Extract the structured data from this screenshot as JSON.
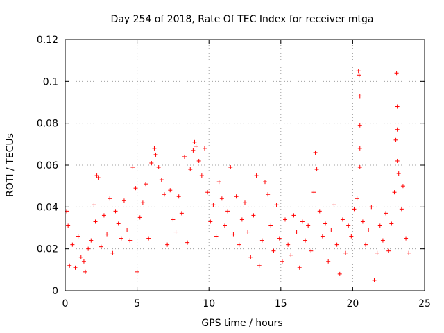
{
  "chart_data": {
    "type": "scatter",
    "title": "Day 254 of 2018, Rate Of TEC Index for receiver mtga",
    "xlabel": "GPS time / hours",
    "ylabel": "ROTI / TECUs",
    "xlim": [
      0,
      25
    ],
    "ylim": [
      0,
      0.12
    ],
    "x_ticks": [
      0,
      5,
      10,
      15,
      20,
      25
    ],
    "x_tick_labels": [
      "0",
      "5",
      "10",
      "15",
      "20",
      "25"
    ],
    "y_ticks": [
      0,
      0.02,
      0.04,
      0.06,
      0.08,
      0.1,
      0.12
    ],
    "y_tick_labels": [
      "0",
      "0.02",
      "0.04",
      "0.06",
      "0.08",
      "0.1",
      "0.12"
    ],
    "grid": true,
    "marker": "+",
    "color": "#ff0000",
    "series": [
      {
        "name": "ROTI",
        "points": [
          [
            0.1,
            0.038
          ],
          [
            0.2,
            0.031
          ],
          [
            0.3,
            0.012
          ],
          [
            0.5,
            0.022
          ],
          [
            0.7,
            0.011
          ],
          [
            0.9,
            0.026
          ],
          [
            1.1,
            0.016
          ],
          [
            1.3,
            0.014
          ],
          [
            1.4,
            0.009
          ],
          [
            1.6,
            0.02
          ],
          [
            1.8,
            0.024
          ],
          [
            2.0,
            0.041
          ],
          [
            2.1,
            0.033
          ],
          [
            2.2,
            0.055
          ],
          [
            2.3,
            0.054
          ],
          [
            2.5,
            0.021
          ],
          [
            2.7,
            0.036
          ],
          [
            2.9,
            0.027
          ],
          [
            3.1,
            0.044
          ],
          [
            3.3,
            0.018
          ],
          [
            3.5,
            0.038
          ],
          [
            3.7,
            0.032
          ],
          [
            3.9,
            0.025
          ],
          [
            4.1,
            0.043
          ],
          [
            4.3,
            0.029
          ],
          [
            4.5,
            0.024
          ],
          [
            4.7,
            0.059
          ],
          [
            4.9,
            0.049
          ],
          [
            5.0,
            0.009
          ],
          [
            5.2,
            0.035
          ],
          [
            5.4,
            0.042
          ],
          [
            5.6,
            0.051
          ],
          [
            5.8,
            0.025
          ],
          [
            6.0,
            0.061
          ],
          [
            6.2,
            0.068
          ],
          [
            6.3,
            0.065
          ],
          [
            6.5,
            0.059
          ],
          [
            6.7,
            0.053
          ],
          [
            6.9,
            0.046
          ],
          [
            7.1,
            0.022
          ],
          [
            7.3,
            0.048
          ],
          [
            7.5,
            0.034
          ],
          [
            7.7,
            0.028
          ],
          [
            7.9,
            0.045
          ],
          [
            8.1,
            0.037
          ],
          [
            8.3,
            0.064
          ],
          [
            8.5,
            0.023
          ],
          [
            8.7,
            0.058
          ],
          [
            8.9,
            0.067
          ],
          [
            9.0,
            0.071
          ],
          [
            9.1,
            0.069
          ],
          [
            9.3,
            0.062
          ],
          [
            9.5,
            0.055
          ],
          [
            9.7,
            0.068
          ],
          [
            9.9,
            0.047
          ],
          [
            10.1,
            0.033
          ],
          [
            10.3,
            0.041
          ],
          [
            10.5,
            0.026
          ],
          [
            10.7,
            0.052
          ],
          [
            10.9,
            0.044
          ],
          [
            11.1,
            0.031
          ],
          [
            11.3,
            0.038
          ],
          [
            11.5,
            0.059
          ],
          [
            11.7,
            0.027
          ],
          [
            11.9,
            0.045
          ],
          [
            12.1,
            0.022
          ],
          [
            12.3,
            0.034
          ],
          [
            12.5,
            0.042
          ],
          [
            12.7,
            0.028
          ],
          [
            12.9,
            0.016
          ],
          [
            13.1,
            0.036
          ],
          [
            13.3,
            0.055
          ],
          [
            13.5,
            0.012
          ],
          [
            13.7,
            0.024
          ],
          [
            13.9,
            0.052
          ],
          [
            14.1,
            0.046
          ],
          [
            14.3,
            0.031
          ],
          [
            14.5,
            0.019
          ],
          [
            14.7,
            0.041
          ],
          [
            14.9,
            0.025
          ],
          [
            15.1,
            0.014
          ],
          [
            15.3,
            0.034
          ],
          [
            15.5,
            0.022
          ],
          [
            15.7,
            0.017
          ],
          [
            15.9,
            0.036
          ],
          [
            16.1,
            0.028
          ],
          [
            16.3,
            0.011
          ],
          [
            16.5,
            0.033
          ],
          [
            16.7,
            0.024
          ],
          [
            16.9,
            0.031
          ],
          [
            17.1,
            0.019
          ],
          [
            17.3,
            0.047
          ],
          [
            17.4,
            0.066
          ],
          [
            17.5,
            0.058
          ],
          [
            17.7,
            0.038
          ],
          [
            17.9,
            0.026
          ],
          [
            18.1,
            0.032
          ],
          [
            18.3,
            0.014
          ],
          [
            18.5,
            0.029
          ],
          [
            18.7,
            0.041
          ],
          [
            18.9,
            0.022
          ],
          [
            19.1,
            0.008
          ],
          [
            19.3,
            0.034
          ],
          [
            19.5,
            0.018
          ],
          [
            19.7,
            0.031
          ],
          [
            19.9,
            0.026
          ],
          [
            20.1,
            0.039
          ],
          [
            20.3,
            0.044
          ],
          [
            20.4,
            0.105
          ],
          [
            20.45,
            0.103
          ],
          [
            20.5,
            0.093
          ],
          [
            20.5,
            0.079
          ],
          [
            20.5,
            0.068
          ],
          [
            20.5,
            0.059
          ],
          [
            20.7,
            0.033
          ],
          [
            20.9,
            0.022
          ],
          [
            21.1,
            0.029
          ],
          [
            21.3,
            0.04
          ],
          [
            21.5,
            0.005
          ],
          [
            21.7,
            0.018
          ],
          [
            21.9,
            0.031
          ],
          [
            22.1,
            0.024
          ],
          [
            22.3,
            0.037
          ],
          [
            22.5,
            0.019
          ],
          [
            22.7,
            0.032
          ],
          [
            22.9,
            0.047
          ],
          [
            23.0,
            0.072
          ],
          [
            23.05,
            0.104
          ],
          [
            23.1,
            0.088
          ],
          [
            23.1,
            0.077
          ],
          [
            23.1,
            0.062
          ],
          [
            23.2,
            0.056
          ],
          [
            23.4,
            0.039
          ],
          [
            23.5,
            0.05
          ],
          [
            23.7,
            0.025
          ],
          [
            23.9,
            0.018
          ]
        ]
      }
    ]
  }
}
